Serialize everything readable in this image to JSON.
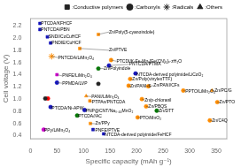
{
  "chart_data": {
    "type": "scatter",
    "xlabel": "Specific capacity (mAh g⁻¹)",
    "ylabel": "Cell voltage (V)",
    "xlim": [
      0,
      370
    ],
    "ylim": [
      0.35,
      2.32
    ],
    "xticks": [
      0,
      50,
      100,
      150,
      200,
      250,
      300,
      350
    ],
    "yticks": [
      0.4,
      0.6,
      0.8,
      {
        "value": 1.0,
        "label": "1.0"
      },
      1.2,
      1.4,
      1.6,
      1.8,
      {
        "value": 2.0,
        "label": "2.0"
      },
      2.2
    ],
    "grid": false,
    "legend": "upper right",
    "series": [
      {
        "name": ":Conductive polymers",
        "marker": "square",
        "color": "#222222",
        "x": [
          18,
          18,
          32,
          38,
          128,
          93,
          50,
          112,
          113,
          118,
          138
        ],
        "values": [
          2.24,
          2.14,
          2.02,
          1.92,
          2.06,
          1.83,
          1.4,
          0.97,
          0.6,
          0.5,
          0.43
        ],
        "colors": [
          "#1111bb",
          "#1111bb",
          "#1111bb",
          "#1111bb",
          "#ff8c00",
          "#ff8c00",
          "#cc00cc",
          "#ff8c00",
          "#ff8c00",
          "#1111bb",
          "#1111bb"
        ]
      },
      {
        "name": ":Carbonyls",
        "marker": "circle",
        "color": "#222222",
        "x": [
          152,
          148,
          128,
          198,
          188,
          50,
          185,
          128,
          222,
          38,
          33,
          28,
          288,
          210,
          102,
          218,
          238,
          88,
          202,
          25,
          338,
          352
        ],
        "values": [
          1.64,
          1.55,
          1.5,
          1.42,
          1.33,
          1.27,
          1.22,
          1.25,
          1.21,
          0.87,
          1.01,
          1.01,
          1.14,
          1.0,
          0.82,
          0.88,
          0.81,
          0.73,
          0.7,
          0.5,
          0.65,
          0.95
        ],
        "colors": [
          "#ff8c00",
          "#1111bb",
          "#007700",
          "#1111bb",
          "#ff8c00",
          "#1111bb",
          "#ff8c00",
          "#222222",
          "#ff8c00",
          "#1111bb",
          "#ff0000",
          "#222222",
          "#ff8c00",
          "#ff8c00",
          "#1111bb",
          "#ff8c00",
          "#007700",
          "#007700",
          "#ff8c00",
          "#cc00cc",
          "#ff8c00",
          "#ff8c00"
        ]
      },
      {
        "name": ":Radicals",
        "marker": "star",
        "color": "#222222",
        "x": [
          40
        ],
        "values": [
          1.7
        ],
        "colors": [
          "#ff8c00"
        ]
      },
      {
        "name": ":Others",
        "marker": "triangle",
        "color": "#222222",
        "x": [
          105,
          342
        ],
        "values": [
          1.05,
          1.14
        ],
        "colors": [
          "#ff8c00",
          "#ff8c00"
        ]
      }
    ],
    "annotations": [
      {
        "text": "PTCDA/KFHCF",
        "x": 18,
        "y": 2.24,
        "text_x": 20,
        "text_y": 2.24
      },
      {
        "text": "PNTCDA/PBN",
        "x": 18,
        "y": 2.14,
        "text_x": 20,
        "text_y": 2.14
      },
      {
        "text": "SNDI/CoCuHCF",
        "x": 32,
        "y": 2.02,
        "text_x": 34,
        "text_y": 2.02
      },
      {
        "text": "PNDIE/CuHCF",
        "x": 38,
        "y": 1.92,
        "text_x": 40,
        "text_y": 1.92
      },
      {
        "text": "Zn/Poly(5-cyanoindole)",
        "x": 128,
        "y": 2.06,
        "text_x": 148,
        "text_y": 2.1
      },
      {
        "text": "Zn/PTVE",
        "x": 93,
        "y": 1.83,
        "text_x": 148,
        "text_y": 1.8
      },
      {
        "text": "PNTCDA/LiMn₂O₄",
        "x": 40,
        "y": 1.7,
        "text_x": 52,
        "text_y": 1.68
      },
      {
        "text": "PTCDI/KₓFeₓMnₓ[Fe(CN)₆]ₓ·zH₂O",
        "x": 152,
        "y": 1.64,
        "text_x": 162,
        "text_y": 1.62
      },
      {
        "text": "PNTCDA/PTMA",
        "x": 148,
        "y": 1.55,
        "text_x": 186,
        "text_y": 1.57
      },
      {
        "text": "Zn/Polyindole",
        "x": 128,
        "y": 1.5,
        "text_x": 138,
        "text_y": 1.5
      },
      {
        "text": "NTCDA-derived polyimide/LiCoO₂",
        "x": 198,
        "y": 1.42,
        "text_x": 200,
        "text_y": 1.4
      },
      {
        "text": "PNFE/LiMn₂O₄",
        "x": 50,
        "y": 1.4,
        "text_x": 60,
        "text_y": 1.38
      },
      {
        "text": "Zn/Poly(vinylexTTF)",
        "x": 188,
        "y": 1.33,
        "text_x": 192,
        "text_y": 1.32
      },
      {
        "text": "PPMDA/LVP",
        "x": 50,
        "y": 1.27,
        "text_x": 60,
        "text_y": 1.26
      },
      {
        "text": "Zn/PANI-S",
        "x": 185,
        "y": 1.22,
        "text_x": 188,
        "text_y": 1.21
      },
      {
        "text": "Zn/PANI/CFs",
        "x": 222,
        "y": 1.21,
        "text_x": 232,
        "text_y": 1.22
      },
      {
        "text": "PANI/LiMn₂O₄",
        "x": 105,
        "y": 1.05,
        "text_x": 115,
        "text_y": 1.04
      },
      {
        "text": "PTCDA/Ni-APW",
        "x": 38,
        "y": 0.87,
        "text_x": 40,
        "text_y": 0.855
      },
      {
        "text": "PTPAn/PNTCDA",
        "x": 112,
        "y": 0.97,
        "text_x": 116,
        "text_y": 0.955
      },
      {
        "text": "PPTO/LiMn₂O₄",
        "x": 288,
        "y": 1.14,
        "text_x": 292,
        "text_y": 1.13
      },
      {
        "text": "Zn/p-chloranil",
        "x": 210,
        "y": 1.0,
        "text_x": 215,
        "text_y": 0.985
      },
      {
        "text": "Zn/PC/G",
        "x": 342,
        "y": 1.14,
        "text_x": 347,
        "text_y": 1.14
      },
      {
        "text": "PNP@CNT/Na₀.₄₄MnO₂",
        "x": 102,
        "y": 0.82,
        "text_x": 104,
        "text_y": 0.81
      },
      {
        "text": "Zn/PBQS",
        "x": 218,
        "y": 0.88,
        "text_x": 222,
        "text_y": 0.875
      },
      {
        "text": "Zn/DTT",
        "x": 238,
        "y": 0.81,
        "text_x": 242,
        "text_y": 0.8
      },
      {
        "text": "PTCDA//AC",
        "x": 88,
        "y": 0.73,
        "text_x": 90,
        "text_y": 0.72
      },
      {
        "text": "PTO/MnO₂",
        "x": 202,
        "y": 0.7,
        "text_x": 206,
        "text_y": 0.69
      },
      {
        "text": "Zn/PPy",
        "x": 113,
        "y": 0.6,
        "text_x": 122,
        "text_y": 0.596
      },
      {
        "text": "PNFE/PTVE",
        "x": 118,
        "y": 0.5,
        "text_x": 122,
        "text_y": 0.49
      },
      {
        "text": "PPy/LiMn₂O₄",
        "x": 25,
        "y": 0.5,
        "text_x": 26,
        "text_y": 0.49
      },
      {
        "text": "Zn/C4Q",
        "x": 338,
        "y": 0.65,
        "text_x": 342,
        "text_y": 0.645
      },
      {
        "text": "Zn/PTO",
        "x": 352,
        "y": 0.95,
        "text_x": 356,
        "text_y": 0.945
      },
      {
        "text": "NTCDA-derived polyimide/FeHCF",
        "x": 138,
        "y": 0.43,
        "text_x": 140,
        "text_y": 0.42
      }
    ]
  }
}
